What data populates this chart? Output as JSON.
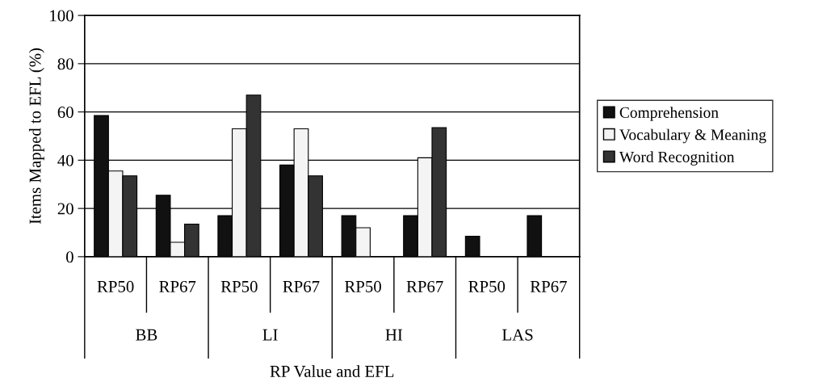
{
  "chart_data": {
    "type": "bar",
    "ylabel": "Items Mapped to EFL (%)",
    "xlabel": "RP Value and EFL",
    "categories": [
      "RP50",
      "RP67",
      "RP50",
      "RP67",
      "RP50",
      "RP67",
      "RP50",
      "RP67"
    ],
    "annotations": [
      "BB",
      "LI",
      "HI",
      "LAS"
    ],
    "series": [
      {
        "name": "Comprehension",
        "color": "#111111",
        "values": [
          58.5,
          25.5,
          17,
          38,
          17,
          17,
          8.5,
          17
        ]
      },
      {
        "name": "Vocabulary & Meaning",
        "color": "#f4f4f4",
        "values": [
          35.5,
          6,
          53,
          53,
          12,
          41,
          null,
          null
        ]
      },
      {
        "name": "Word Recognition",
        "color": "#333333",
        "values": [
          33.5,
          13.5,
          67,
          33.5,
          null,
          53.5,
          null,
          null
        ]
      }
    ],
    "ylim": [
      0,
      100
    ],
    "yticks": [
      0,
      20,
      40,
      60,
      80,
      100
    ],
    "grid": "y",
    "legend": "right"
  }
}
